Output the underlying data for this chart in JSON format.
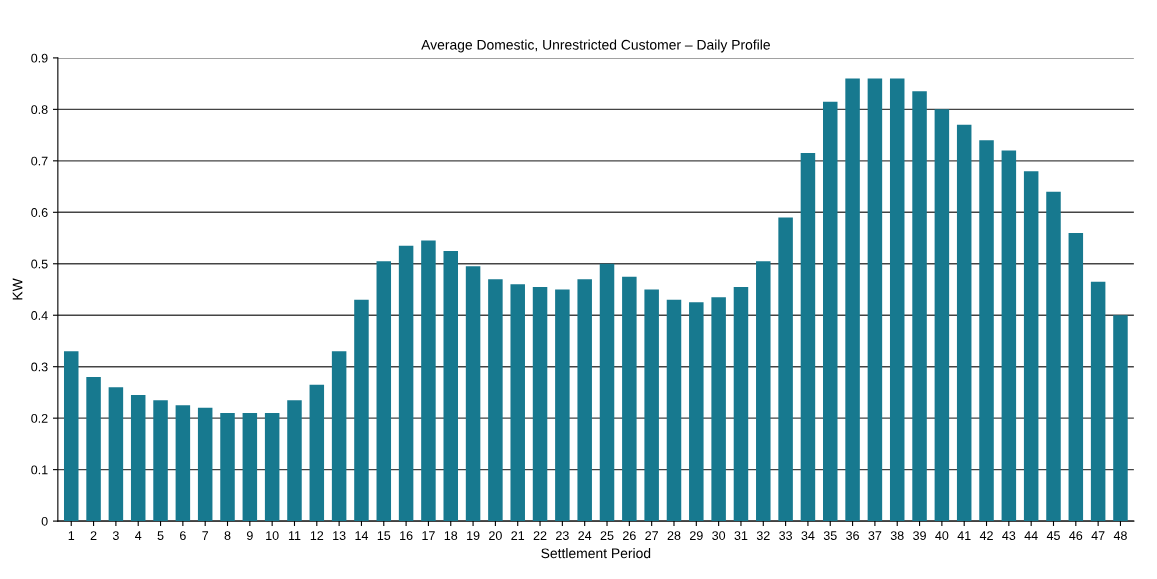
{
  "chart_data": {
    "type": "bar",
    "title": "Average Domestic, Unrestricted Customer – Daily Profile",
    "xlabel": "Settlement Period",
    "ylabel": "KW",
    "categories": [
      "1",
      "2",
      "3",
      "4",
      "5",
      "6",
      "7",
      "8",
      "9",
      "10",
      "11",
      "12",
      "13",
      "14",
      "15",
      "16",
      "17",
      "18",
      "19",
      "20",
      "21",
      "22",
      "23",
      "24",
      "25",
      "26",
      "27",
      "28",
      "29",
      "30",
      "31",
      "32",
      "33",
      "34",
      "35",
      "36",
      "37",
      "38",
      "39",
      "40",
      "41",
      "42",
      "43",
      "44",
      "45",
      "46",
      "47",
      "48"
    ],
    "values": [
      0.33,
      0.28,
      0.26,
      0.245,
      0.235,
      0.225,
      0.22,
      0.21,
      0.21,
      0.21,
      0.235,
      0.265,
      0.33,
      0.43,
      0.505,
      0.535,
      0.545,
      0.525,
      0.495,
      0.47,
      0.46,
      0.455,
      0.45,
      0.47,
      0.5,
      0.475,
      0.45,
      0.43,
      0.425,
      0.435,
      0.455,
      0.505,
      0.59,
      0.715,
      0.815,
      0.86,
      0.86,
      0.86,
      0.835,
      0.8,
      0.77,
      0.74,
      0.72,
      0.68,
      0.64,
      0.56,
      0.465,
      0.4
    ],
    "color": "#17798f",
    "ylim": [
      0,
      0.9
    ],
    "yticks": [
      0,
      0.1,
      0.2,
      0.3,
      0.4,
      0.5,
      0.6,
      0.7,
      0.8,
      0.9
    ],
    "grid": "y"
  }
}
